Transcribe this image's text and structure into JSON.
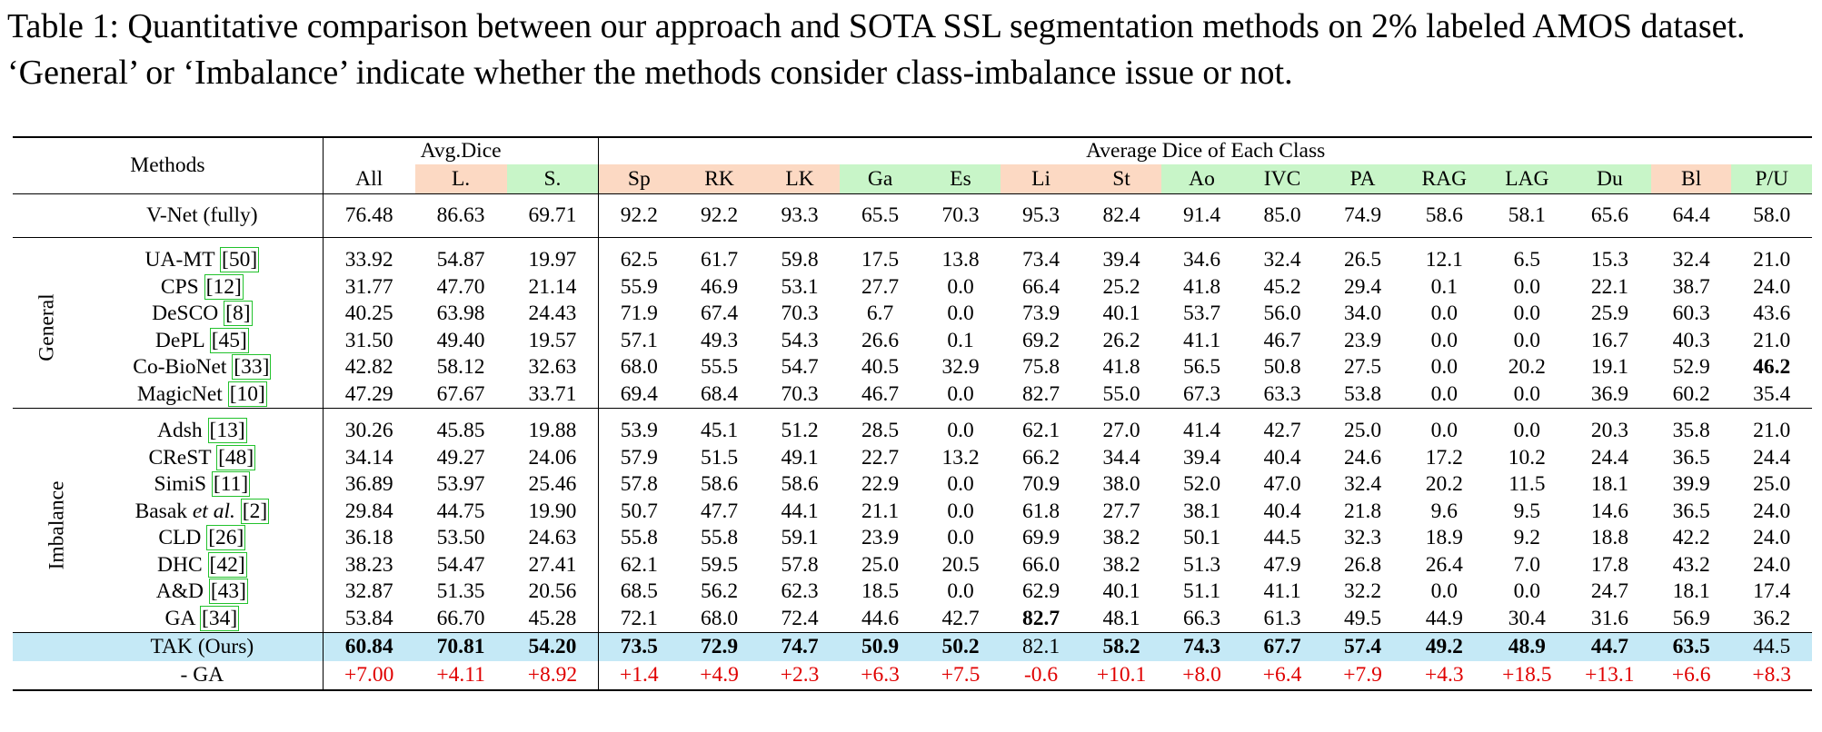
{
  "caption": "Table 1: Quantitative comparison between our approach and SOTA SSL segmentation methods on 2% labeled AMOS dataset. ‘General’ or ‘Imbalance’ indicate whether the methods consider class-imbalance issue or not.",
  "header": {
    "methods_label": "Methods",
    "avg_dice_label": "Avg.Dice",
    "each_class_label": "Average Dice of Each Class",
    "avg_cols": [
      {
        "label": "All",
        "cat": "none"
      },
      {
        "label": "L.",
        "cat": "l"
      },
      {
        "label": "S.",
        "cat": "s"
      }
    ],
    "class_cols": [
      {
        "label": "Sp",
        "cat": "l"
      },
      {
        "label": "RK",
        "cat": "l"
      },
      {
        "label": "LK",
        "cat": "l"
      },
      {
        "label": "Ga",
        "cat": "s"
      },
      {
        "label": "Es",
        "cat": "s"
      },
      {
        "label": "Li",
        "cat": "l"
      },
      {
        "label": "St",
        "cat": "l"
      },
      {
        "label": "Ao",
        "cat": "s"
      },
      {
        "label": "IVC",
        "cat": "s"
      },
      {
        "label": "PA",
        "cat": "s"
      },
      {
        "label": "RAG",
        "cat": "s"
      },
      {
        "label": "LAG",
        "cat": "s"
      },
      {
        "label": "Du",
        "cat": "s"
      },
      {
        "label": "Bl",
        "cat": "l"
      },
      {
        "label": "P/U",
        "cat": "s"
      }
    ]
  },
  "colors": {
    "large_bg": "#fcd9c3",
    "small_bg": "#c8f5c8",
    "ours_bg": "#c5e9f6",
    "delta_text": "#e00000",
    "ref_border": "#22c22c"
  },
  "fully": {
    "method": "V-Net (fully)",
    "values": [
      "76.48",
      "86.63",
      "69.71",
      "92.2",
      "92.2",
      "93.3",
      "65.5",
      "70.3",
      "95.3",
      "82.4",
      "91.4",
      "85.0",
      "74.9",
      "58.6",
      "58.1",
      "65.6",
      "64.4",
      "58.0"
    ]
  },
  "groups": [
    {
      "name": "General",
      "rows": [
        {
          "method": "UA-MT",
          "ref": "50",
          "values": [
            "33.92",
            "54.87",
            "19.97",
            "62.5",
            "61.7",
            "59.8",
            "17.5",
            "13.8",
            "73.4",
            "39.4",
            "34.6",
            "32.4",
            "26.5",
            "12.1",
            "6.5",
            "15.3",
            "32.4",
            "21.0"
          ]
        },
        {
          "method": "CPS",
          "ref": "12",
          "values": [
            "31.77",
            "47.70",
            "21.14",
            "55.9",
            "46.9",
            "53.1",
            "27.7",
            "0.0",
            "66.4",
            "25.2",
            "41.8",
            "45.2",
            "29.4",
            "0.1",
            "0.0",
            "22.1",
            "38.7",
            "24.0"
          ]
        },
        {
          "method": "DeSCO",
          "ref": "8",
          "values": [
            "40.25",
            "63.98",
            "24.43",
            "71.9",
            "67.4",
            "70.3",
            "6.7",
            "0.0",
            "73.9",
            "40.1",
            "53.7",
            "56.0",
            "34.0",
            "0.0",
            "0.0",
            "25.9",
            "60.3",
            "43.6"
          ]
        },
        {
          "method": "DePL",
          "ref": "45",
          "values": [
            "31.50",
            "49.40",
            "19.57",
            "57.1",
            "49.3",
            "54.3",
            "26.6",
            "0.1",
            "69.2",
            "26.2",
            "41.1",
            "46.7",
            "23.9",
            "0.0",
            "0.0",
            "16.7",
            "40.3",
            "21.0"
          ]
        },
        {
          "method": "Co-BioNet",
          "ref": "33",
          "values": [
            "42.82",
            "58.12",
            "32.63",
            "68.0",
            "55.5",
            "54.7",
            "40.5",
            "32.9",
            "75.8",
            "41.8",
            "56.5",
            "50.8",
            "27.5",
            "0.0",
            "20.2",
            "19.1",
            "52.9",
            "46.2"
          ],
          "bold_idx": [
            17
          ]
        },
        {
          "method": "MagicNet",
          "ref": "10",
          "values": [
            "47.29",
            "67.67",
            "33.71",
            "69.4",
            "68.4",
            "70.3",
            "46.7",
            "0.0",
            "82.7",
            "55.0",
            "67.3",
            "63.3",
            "53.8",
            "0.0",
            "0.0",
            "36.9",
            "60.2",
            "35.4"
          ]
        }
      ]
    },
    {
      "name": "Imbalance",
      "rows": [
        {
          "method": "Adsh",
          "ref": "13",
          "values": [
            "30.26",
            "45.85",
            "19.88",
            "53.9",
            "45.1",
            "51.2",
            "28.5",
            "0.0",
            "62.1",
            "27.0",
            "41.4",
            "42.7",
            "25.0",
            "0.0",
            "0.0",
            "20.3",
            "35.8",
            "21.0"
          ]
        },
        {
          "method": "CReST",
          "ref": "48",
          "values": [
            "34.14",
            "49.27",
            "24.06",
            "57.9",
            "51.5",
            "49.1",
            "22.7",
            "13.2",
            "66.2",
            "34.4",
            "39.4",
            "40.4",
            "24.6",
            "17.2",
            "10.2",
            "24.4",
            "36.5",
            "24.4"
          ]
        },
        {
          "method": "SimiS",
          "ref": "11",
          "values": [
            "36.89",
            "53.97",
            "25.46",
            "57.8",
            "58.6",
            "58.6",
            "22.9",
            "0.0",
            "70.9",
            "38.0",
            "52.0",
            "47.0",
            "32.4",
            "20.2",
            "11.5",
            "18.1",
            "39.9",
            "25.0"
          ]
        },
        {
          "method": "Basak",
          "method_em": "et al.",
          "ref": "2",
          "values": [
            "29.84",
            "44.75",
            "19.90",
            "50.7",
            "47.7",
            "44.1",
            "21.1",
            "0.0",
            "61.8",
            "27.7",
            "38.1",
            "40.4",
            "21.8",
            "9.6",
            "9.5",
            "14.6",
            "36.5",
            "24.0"
          ]
        },
        {
          "method": "CLD",
          "ref": "26",
          "values": [
            "36.18",
            "53.50",
            "24.63",
            "55.8",
            "55.8",
            "59.1",
            "23.9",
            "0.0",
            "69.9",
            "38.2",
            "50.1",
            "44.5",
            "32.3",
            "18.9",
            "9.2",
            "18.8",
            "42.2",
            "24.0"
          ]
        },
        {
          "method": "DHC",
          "ref": "42",
          "values": [
            "38.23",
            "54.47",
            "27.41",
            "62.1",
            "59.5",
            "57.8",
            "25.0",
            "20.5",
            "66.0",
            "38.2",
            "51.3",
            "47.9",
            "26.8",
            "26.4",
            "7.0",
            "17.8",
            "43.2",
            "24.0"
          ]
        },
        {
          "method": "A&D",
          "ref": "43",
          "values": [
            "32.87",
            "51.35",
            "20.56",
            "68.5",
            "56.2",
            "62.3",
            "18.5",
            "0.0",
            "62.9",
            "40.1",
            "51.1",
            "41.1",
            "32.2",
            "0.0",
            "0.0",
            "24.7",
            "18.1",
            "17.4"
          ]
        },
        {
          "method": "GA",
          "ref": "34",
          "values": [
            "53.84",
            "66.70",
            "45.28",
            "72.1",
            "68.0",
            "72.4",
            "44.6",
            "42.7",
            "82.7",
            "48.1",
            "66.3",
            "61.3",
            "49.5",
            "44.9",
            "30.4",
            "31.6",
            "56.9",
            "36.2"
          ],
          "bold_idx": [
            8
          ]
        }
      ]
    }
  ],
  "ours": {
    "method": "TAK (Ours)",
    "values": [
      "60.84",
      "70.81",
      "54.20",
      "73.5",
      "72.9",
      "74.7",
      "50.9",
      "50.2",
      "82.1",
      "58.2",
      "74.3",
      "67.7",
      "57.4",
      "49.2",
      "48.9",
      "44.7",
      "63.5",
      "44.5"
    ],
    "nonbold_idx": [
      8,
      17
    ]
  },
  "diff": {
    "method": "- GA",
    "values": [
      "+7.00",
      "+4.11",
      "+8.92",
      "+1.4",
      "+4.9",
      "+2.3",
      "+6.3",
      "+7.5",
      "-0.6",
      "+10.1",
      "+8.0",
      "+6.4",
      "+7.9",
      "+4.3",
      "+18.5",
      "+13.1",
      "+6.6",
      "+8.3"
    ]
  }
}
